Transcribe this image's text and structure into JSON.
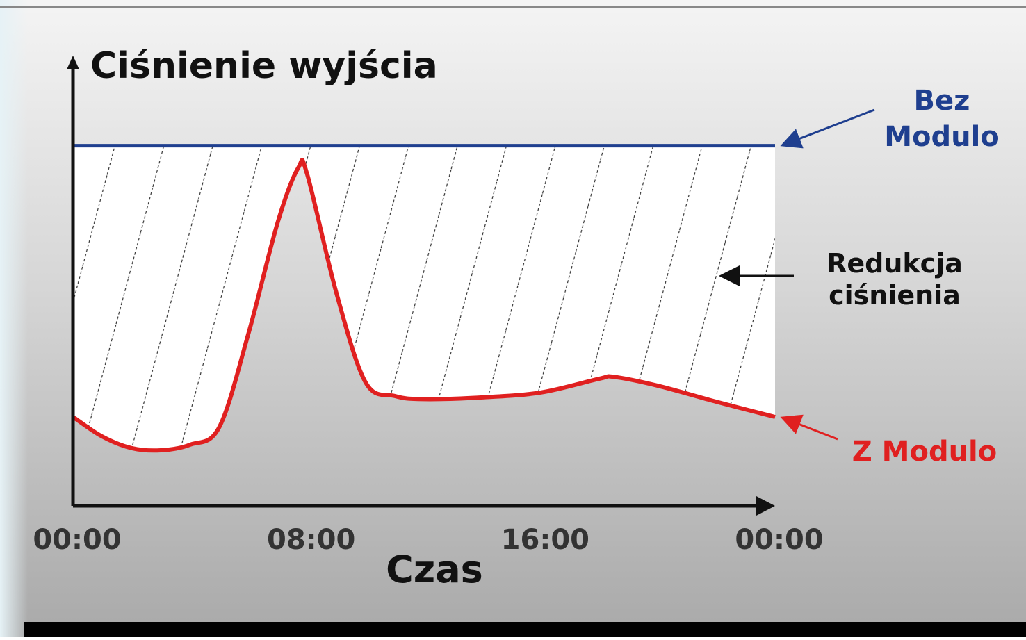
{
  "chart_data": {
    "type": "line",
    "y_axis_label": "Ciśnienie wyjścia",
    "x_axis_label": "Czas",
    "x": [
      0,
      1,
      2,
      3,
      4,
      5,
      6,
      7,
      7.7,
      8,
      9,
      10,
      11,
      12,
      14,
      16,
      18,
      18.5,
      20,
      22,
      24
    ],
    "xlim": [
      0,
      24
    ],
    "xticks": [
      {
        "value": 0,
        "label": "00:00"
      },
      {
        "value": 8,
        "label": "08:00"
      },
      {
        "value": 16,
        "label": "16:00"
      },
      {
        "value": 24,
        "label": "00:00"
      }
    ],
    "ylim": [
      0,
      100
    ],
    "series": [
      {
        "name": "Bez Modulo",
        "color": "#1f3f8f",
        "x": [
          0,
          24
        ],
        "values": [
          81,
          81
        ]
      },
      {
        "name": "Z Modulo",
        "color": "#e02020",
        "values": [
          20,
          15.6,
          13,
          12.5,
          13.75,
          17.7,
          38.8,
          63.8,
          76,
          74.7,
          48,
          27.8,
          24.7,
          24,
          24.4,
          25.5,
          28.6,
          29,
          27,
          23.4,
          20
        ]
      }
    ],
    "annotation": "Redukcja ciśnienia"
  }
}
